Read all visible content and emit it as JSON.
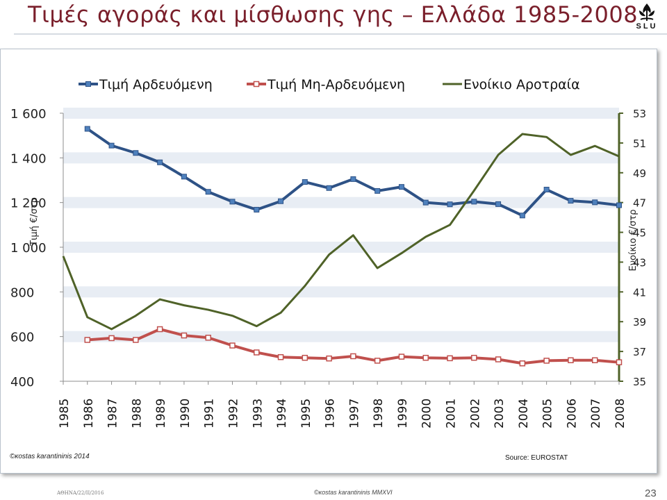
{
  "slide": {
    "title": "Τιμές αγοράς και μίσθωσης γης – Ελλάδα 1985-2008",
    "logo_text": "SLU",
    "credit": "©κostas karantininis 2014",
    "source": "Source: EUROSTAT",
    "footer_left": "ΑΘΗΝΑ/22/ΙΙ/2016",
    "footer_center": "©κostas karantininis MMXVI",
    "page_number": "23"
  },
  "colors": {
    "title": "#7a1f2b",
    "irrigated": "#2e5286",
    "non_irrigated": "#c0504d",
    "rent": "#4f6228",
    "grid_band": "#e8edf4"
  },
  "chart_data": {
    "type": "line",
    "x": [
      "1985",
      "1986",
      "1987",
      "1988",
      "1989",
      "1990",
      "1991",
      "1992",
      "1993",
      "1994",
      "1995",
      "1996",
      "1997",
      "1998",
      "1999",
      "2000",
      "2001",
      "2002",
      "2003",
      "2004",
      "2005",
      "2006",
      "2007",
      "2008"
    ],
    "series": [
      {
        "name": "Τιμή Αρδευόμενη",
        "axis": "left",
        "marker": "filled-square",
        "color": "#2e5286",
        "values": [
          null,
          1530,
          1455,
          1422,
          1380,
          1316,
          1248,
          1204,
          1168,
          1206,
          1292,
          1265,
          1305,
          1252,
          1270,
          1200,
          1192,
          1204,
          1193,
          1142,
          1258,
          1208,
          1201,
          1188
        ]
      },
      {
        "name": "Τιμή Μη-Αρδευόμενη",
        "axis": "left",
        "marker": "open-square",
        "color": "#c0504d",
        "values": [
          null,
          585,
          593,
          585,
          633,
          605,
          595,
          560,
          529,
          508,
          505,
          502,
          512,
          492,
          510,
          505,
          503,
          505,
          498,
          480,
          492,
          494,
          494,
          485
        ]
      },
      {
        "name": "Ενοίκιο Αροτραία",
        "axis": "right",
        "marker": "none",
        "color": "#4f6228",
        "values": [
          43.4,
          39.3,
          38.5,
          39.4,
          40.5,
          40.1,
          39.8,
          39.4,
          38.7,
          39.6,
          41.4,
          43.5,
          44.8,
          42.6,
          43.6,
          44.7,
          45.5,
          47.8,
          50.2,
          51.6,
          51.4,
          50.2,
          50.8,
          50.1
        ]
      }
    ],
    "y_left": {
      "label": "Τιμή €/στρ",
      "ylim": [
        400,
        1600
      ],
      "ticks": [
        400,
        600,
        800,
        1000,
        1200,
        1400,
        1600
      ],
      "tick_labels": [
        "400",
        "600",
        "800",
        "1 000",
        "1 200",
        "1 400",
        "1 600"
      ]
    },
    "y_right": {
      "label": "Ενοίκιο €/στρ",
      "ylim": [
        35,
        53
      ],
      "ticks": [
        35,
        37,
        39,
        41,
        43,
        45,
        47,
        49,
        51,
        53
      ],
      "tick_labels": [
        "35",
        "37",
        "39",
        "41",
        "43",
        "45",
        "47",
        "49",
        "51",
        "53"
      ]
    },
    "grid": "horizontal-bands",
    "legend": "top"
  }
}
